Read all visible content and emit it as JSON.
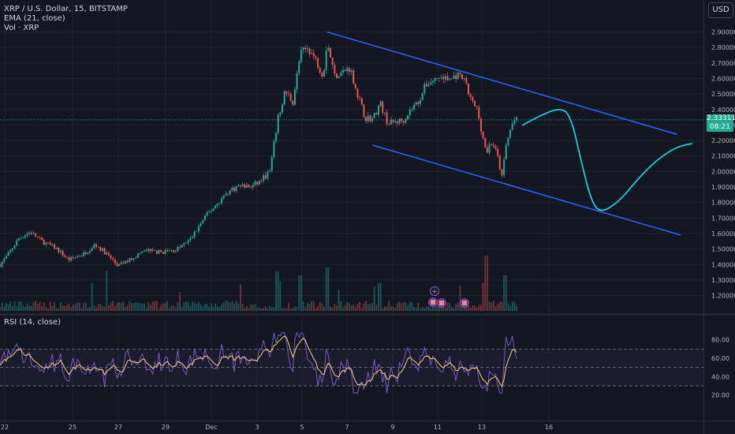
{
  "legend": {
    "symbol": "XRP / U.S. Dollar, 15, BITSTAMP",
    "ema": "EMA (21, close)",
    "vol": "Vol · XRP",
    "rsi": "RSI (14, close)"
  },
  "currency_button": "USD",
  "last_price": {
    "value": "2.33311",
    "countdown": "08:21"
  },
  "colors": {
    "background": "#131722",
    "up": "#26a69a",
    "down": "#ef5350",
    "trendline": "#2962ff",
    "projection": "#26c6da",
    "rsi_line": "#7e57c2",
    "rsi_ma": "#f5d27a",
    "price_badge": "#22ab94"
  },
  "chart_data": [
    {
      "type": "candlestick",
      "symbol": "XRP / U.S. Dollar",
      "interval": "15",
      "exchange": "BITSTAMP",
      "x_ticks": [
        "22",
        "25",
        "27",
        "29",
        "Dec",
        "3",
        "5",
        "7",
        "9",
        "11",
        "13",
        "16"
      ],
      "y_ticks": [
        "2.90000",
        "2.80000",
        "2.70000",
        "2.60000",
        "2.50000",
        "2.40000",
        "2.30000",
        "2.20000",
        "2.10000",
        "2.00000",
        "1.90000",
        "1.80000",
        "1.70000",
        "1.60000",
        "1.50000",
        "1.40000",
        "1.30000",
        "1.20000"
      ],
      "ylim": [
        1.13,
        2.95
      ],
      "grid": true,
      "price_path": [
        {
          "t": 0,
          "p": 1.4
        },
        {
          "t": 2,
          "p": 1.46
        },
        {
          "t": 5,
          "p": 1.57
        },
        {
          "t": 8,
          "p": 1.61
        },
        {
          "t": 11,
          "p": 1.55
        },
        {
          "t": 15,
          "p": 1.5
        },
        {
          "t": 18,
          "p": 1.43
        },
        {
          "t": 22,
          "p": 1.47
        },
        {
          "t": 25,
          "p": 1.53
        },
        {
          "t": 28,
          "p": 1.47
        },
        {
          "t": 31,
          "p": 1.39
        },
        {
          "t": 34,
          "p": 1.43
        },
        {
          "t": 38,
          "p": 1.49
        },
        {
          "t": 42,
          "p": 1.48
        },
        {
          "t": 46,
          "p": 1.49
        },
        {
          "t": 50,
          "p": 1.56
        },
        {
          "t": 54,
          "p": 1.71
        },
        {
          "t": 57,
          "p": 1.79
        },
        {
          "t": 60,
          "p": 1.87
        },
        {
          "t": 63,
          "p": 1.91
        },
        {
          "t": 66,
          "p": 1.9
        },
        {
          "t": 68,
          "p": 1.93
        },
        {
          "t": 71,
          "p": 2.0
        },
        {
          "t": 73,
          "p": 2.33
        },
        {
          "t": 75,
          "p": 2.52
        },
        {
          "t": 77,
          "p": 2.45
        },
        {
          "t": 79,
          "p": 2.76
        },
        {
          "t": 81,
          "p": 2.8
        },
        {
          "t": 83,
          "p": 2.72
        },
        {
          "t": 85,
          "p": 2.62
        },
        {
          "t": 86,
          "p": 2.84
        },
        {
          "t": 88,
          "p": 2.62
        },
        {
          "t": 90,
          "p": 2.64
        },
        {
          "t": 92,
          "p": 2.67
        },
        {
          "t": 94,
          "p": 2.5
        },
        {
          "t": 96,
          "p": 2.35
        },
        {
          "t": 98,
          "p": 2.34
        },
        {
          "t": 100,
          "p": 2.44
        },
        {
          "t": 102,
          "p": 2.31
        },
        {
          "t": 104,
          "p": 2.32
        },
        {
          "t": 106,
          "p": 2.33
        },
        {
          "t": 108,
          "p": 2.4
        },
        {
          "t": 110,
          "p": 2.45
        },
        {
          "t": 112,
          "p": 2.56
        },
        {
          "t": 114,
          "p": 2.59
        },
        {
          "t": 116,
          "p": 2.61
        },
        {
          "t": 118,
          "p": 2.59
        },
        {
          "t": 120,
          "p": 2.62
        },
        {
          "t": 122,
          "p": 2.59
        },
        {
          "t": 124,
          "p": 2.45
        },
        {
          "t": 125.5,
          "p": 2.4
        },
        {
          "t": 127,
          "p": 2.22
        },
        {
          "t": 128,
          "p": 2.12
        },
        {
          "t": 129,
          "p": 2.19
        },
        {
          "t": 130,
          "p": 2.16
        },
        {
          "t": 131,
          "p": 2.08
        },
        {
          "t": 132,
          "p": 1.96
        },
        {
          "t": 133,
          "p": 2.16
        },
        {
          "t": 134,
          "p": 2.25
        },
        {
          "t": 135,
          "p": 2.33
        },
        {
          "t": 136,
          "p": 2.33
        }
      ],
      "series": [
        {
          "kind": "trendline",
          "points": [
            {
              "t": 86,
              "p": 2.9
            },
            {
              "t": 178,
              "p": 2.24
            }
          ]
        },
        {
          "kind": "trendline",
          "points": [
            {
              "t": 98,
              "p": 2.17
            },
            {
              "t": 179,
              "p": 1.59
            }
          ]
        },
        {
          "kind": "projection",
          "points": [
            {
              "t": 137.5,
              "p": 2.3
            },
            {
              "t": 142,
              "p": 2.36
            },
            {
              "t": 147,
              "p": 2.41
            },
            {
              "t": 150,
              "p": 2.37
            },
            {
              "t": 153,
              "p": 2.05
            },
            {
              "t": 155.5,
              "p": 1.81
            },
            {
              "t": 158,
              "p": 1.73
            },
            {
              "t": 163,
              "p": 1.81
            },
            {
              "t": 168,
              "p": 1.96
            },
            {
              "t": 173,
              "p": 2.08
            },
            {
              "t": 178,
              "p": 2.16
            },
            {
              "t": 182,
              "p": 2.18
            }
          ]
        }
      ]
    },
    {
      "type": "line",
      "title": "RSI (14, close)",
      "y_ticks": [
        "80.00",
        "60.00",
        "40.00",
        "20.00"
      ],
      "ylim": [
        15,
        92
      ],
      "bands": [
        70,
        50,
        30
      ],
      "grid": true
    }
  ]
}
